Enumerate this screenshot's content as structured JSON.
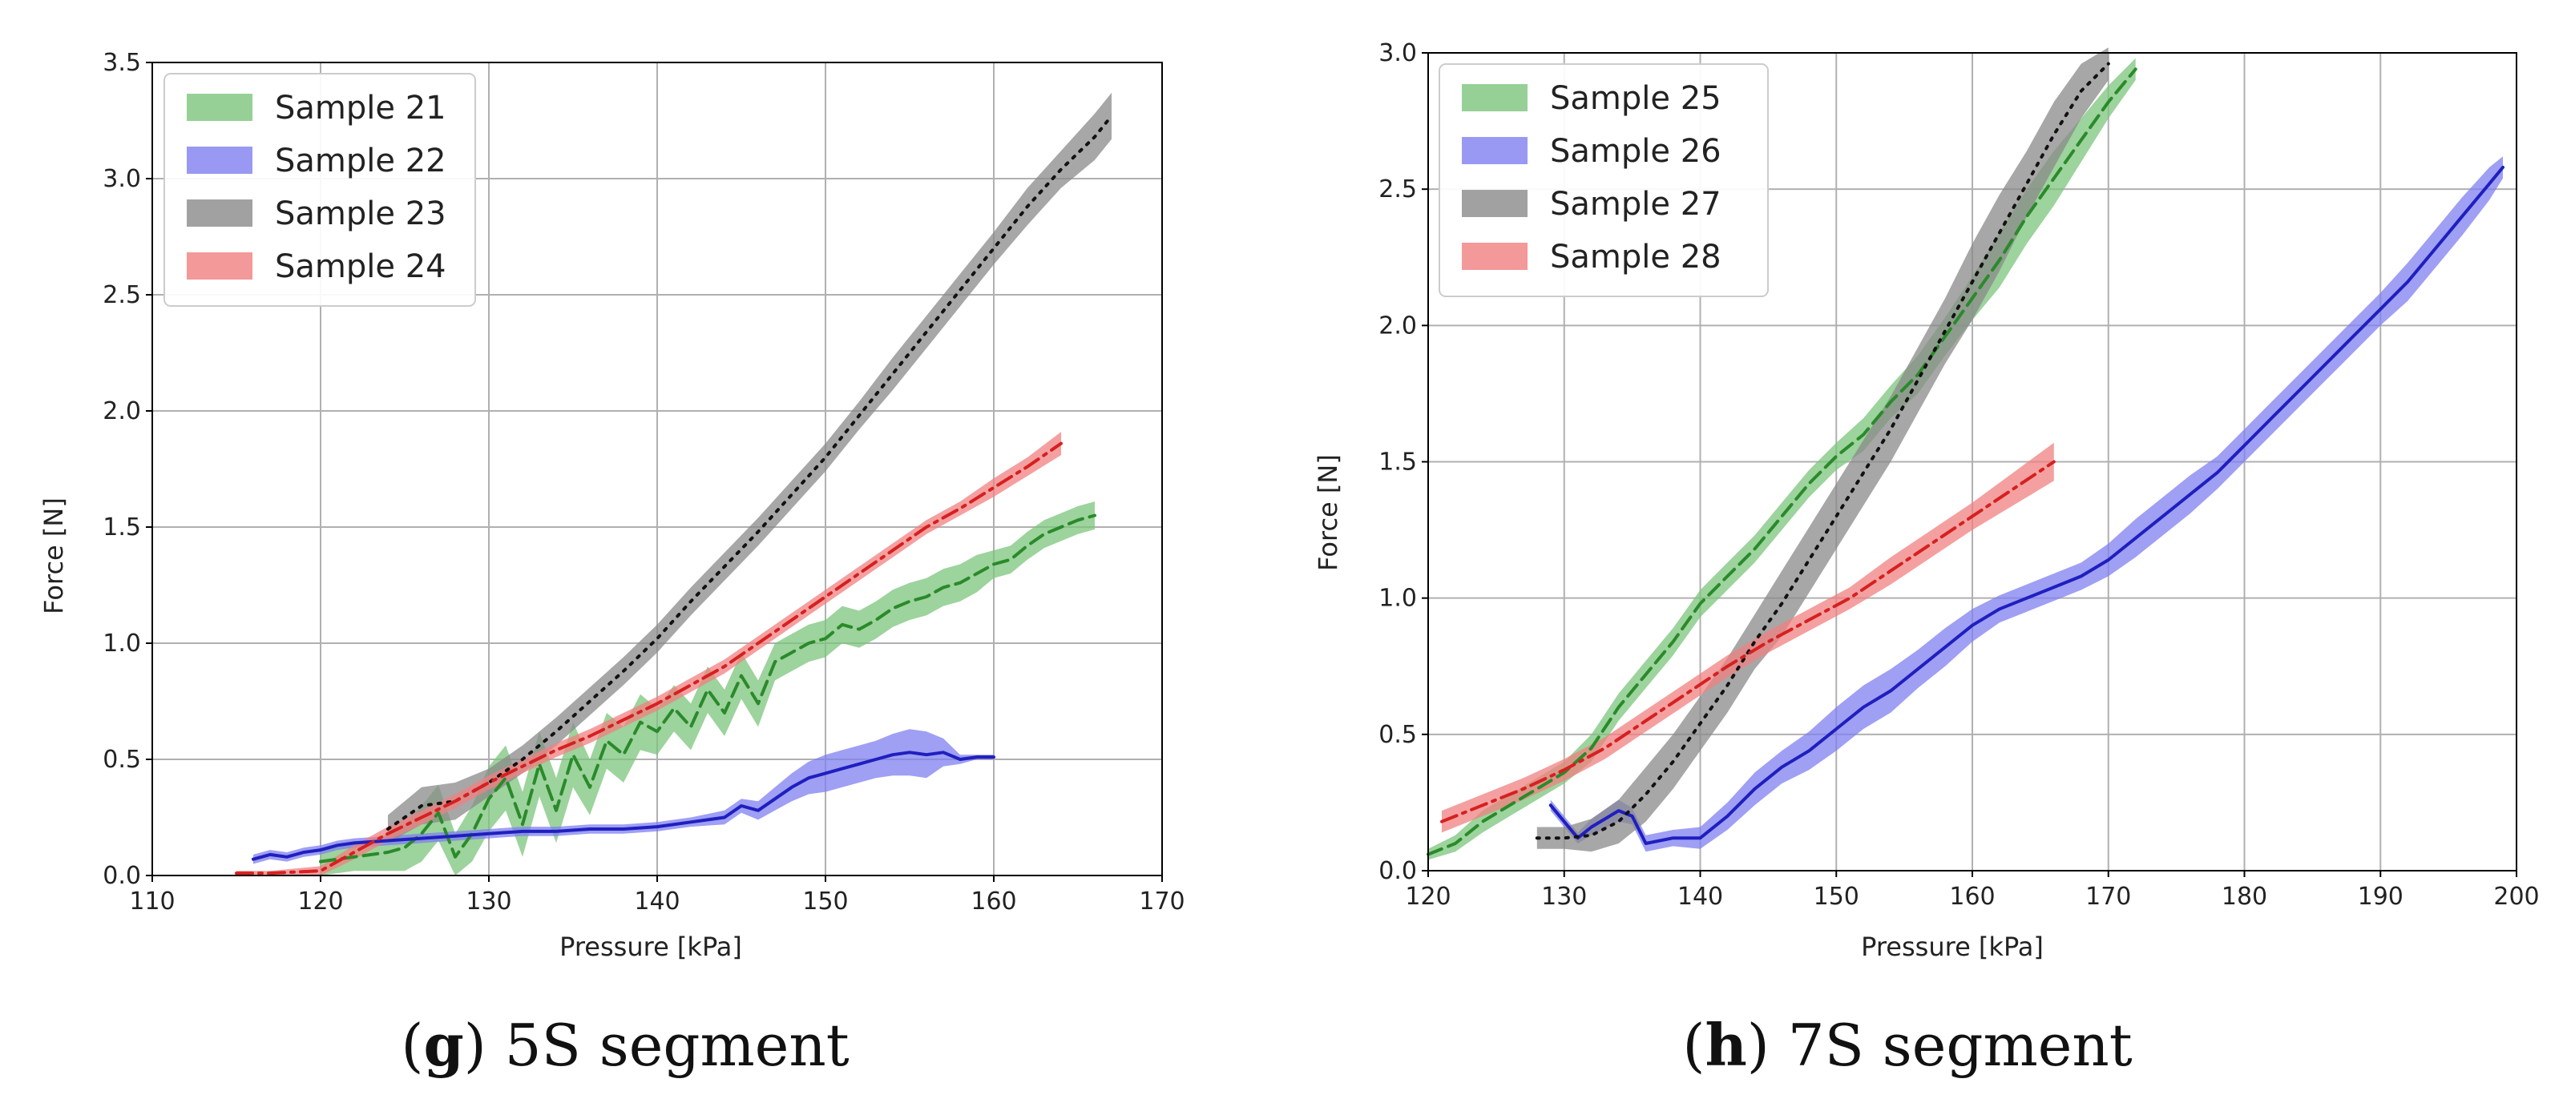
{
  "chart_data": [
    {
      "type": "line",
      "panel": "g",
      "caption_letter": "g",
      "caption_text": "5S segment",
      "xlabel": "Pressure [kPa]",
      "ylabel": "Force [N]",
      "xlim": [
        110,
        170
      ],
      "ylim": [
        0,
        3.5
      ],
      "xticks": [
        110,
        120,
        130,
        140,
        150,
        160,
        170
      ],
      "yticks": [
        0.0,
        0.5,
        1.0,
        1.5,
        2.0,
        2.5,
        3.0,
        3.5
      ],
      "xtick_labels": [
        "110",
        "120",
        "130",
        "140",
        "150",
        "160",
        "170"
      ],
      "ytick_labels": [
        "0.0",
        "0.5",
        "1.0",
        "1.5",
        "2.0",
        "2.5",
        "3.0",
        "3.5"
      ],
      "grid": true,
      "legend_position": "top-left",
      "series": [
        {
          "name": "Sample 21",
          "color": "#2a8a2a",
          "band_color": "#7cc47c",
          "dash": "dashed",
          "x": [
            120,
            122,
            124,
            125,
            126,
            127,
            128,
            129,
            130,
            131,
            132,
            133,
            134,
            135,
            136,
            137,
            138,
            139,
            140,
            141,
            142,
            143,
            144,
            145,
            146,
            147,
            148,
            149,
            150,
            151,
            152,
            153,
            154,
            155,
            156,
            157,
            158,
            159,
            160,
            161,
            162,
            163,
            164,
            165,
            166
          ],
          "y": [
            0.06,
            0.08,
            0.1,
            0.12,
            0.18,
            0.27,
            0.08,
            0.18,
            0.33,
            0.42,
            0.22,
            0.48,
            0.28,
            0.52,
            0.38,
            0.58,
            0.52,
            0.66,
            0.62,
            0.72,
            0.64,
            0.8,
            0.7,
            0.86,
            0.74,
            0.92,
            0.96,
            1.0,
            1.02,
            1.08,
            1.06,
            1.1,
            1.15,
            1.18,
            1.2,
            1.24,
            1.26,
            1.3,
            1.34,
            1.36,
            1.42,
            1.47,
            1.5,
            1.53,
            1.55
          ],
          "band": [
            0.06,
            0.06,
            0.08,
            0.1,
            0.12,
            0.12,
            0.1,
            0.12,
            0.14,
            0.14,
            0.14,
            0.14,
            0.14,
            0.14,
            0.12,
            0.12,
            0.12,
            0.12,
            0.1,
            0.1,
            0.1,
            0.1,
            0.1,
            0.1,
            0.1,
            0.08,
            0.08,
            0.08,
            0.08,
            0.08,
            0.08,
            0.08,
            0.08,
            0.08,
            0.08,
            0.08,
            0.08,
            0.08,
            0.06,
            0.06,
            0.06,
            0.06,
            0.06,
            0.06,
            0.06
          ]
        },
        {
          "name": "Sample 22",
          "color": "#1f1fbf",
          "band_color": "#7f7ff0",
          "dash": "solid",
          "x": [
            116,
            117,
            118,
            119,
            120,
            121,
            122,
            124,
            126,
            128,
            130,
            132,
            134,
            136,
            138,
            140,
            142,
            144,
            145,
            146,
            147,
            148,
            149,
            150,
            151,
            152,
            153,
            154,
            155,
            156,
            157,
            158,
            159,
            160
          ],
          "y": [
            0.07,
            0.09,
            0.08,
            0.1,
            0.11,
            0.13,
            0.14,
            0.15,
            0.16,
            0.17,
            0.18,
            0.19,
            0.19,
            0.2,
            0.2,
            0.21,
            0.23,
            0.25,
            0.3,
            0.28,
            0.33,
            0.38,
            0.42,
            0.44,
            0.46,
            0.48,
            0.5,
            0.52,
            0.53,
            0.52,
            0.53,
            0.5,
            0.51,
            0.51
          ],
          "band": [
            0.02,
            0.02,
            0.02,
            0.02,
            0.02,
            0.02,
            0.02,
            0.02,
            0.02,
            0.02,
            0.02,
            0.02,
            0.02,
            0.02,
            0.02,
            0.02,
            0.02,
            0.03,
            0.03,
            0.04,
            0.05,
            0.06,
            0.07,
            0.08,
            0.08,
            0.08,
            0.08,
            0.09,
            0.1,
            0.1,
            0.06,
            0.02,
            0.01,
            0.01
          ]
        },
        {
          "name": "Sample 23",
          "color": "#111111",
          "band_color": "#8a8a8a",
          "dash": "dotted",
          "x": [
            124,
            126,
            128,
            130,
            132,
            134,
            136,
            138,
            140,
            142,
            144,
            146,
            148,
            150,
            152,
            154,
            156,
            158,
            160,
            162,
            164,
            166,
            167
          ],
          "y": [
            0.2,
            0.3,
            0.32,
            0.4,
            0.5,
            0.62,
            0.75,
            0.88,
            1.02,
            1.18,
            1.33,
            1.48,
            1.64,
            1.8,
            1.98,
            2.16,
            2.34,
            2.52,
            2.7,
            2.88,
            3.04,
            3.18,
            3.27
          ],
          "band": [
            0.06,
            0.08,
            0.08,
            0.06,
            0.06,
            0.06,
            0.06,
            0.06,
            0.06,
            0.06,
            0.06,
            0.06,
            0.06,
            0.06,
            0.06,
            0.07,
            0.07,
            0.07,
            0.07,
            0.08,
            0.08,
            0.1,
            0.1
          ]
        },
        {
          "name": "Sample 24",
          "color": "#d62020",
          "band_color": "#f08080",
          "dash": "dashdot",
          "x": [
            115,
            117,
            120,
            122,
            124,
            126,
            128,
            130,
            132,
            134,
            136,
            138,
            140,
            142,
            144,
            146,
            148,
            150,
            152,
            154,
            156,
            158,
            160,
            162,
            164
          ],
          "y": [
            0.01,
            0.01,
            0.02,
            0.1,
            0.18,
            0.25,
            0.32,
            0.4,
            0.47,
            0.54,
            0.6,
            0.67,
            0.74,
            0.82,
            0.9,
            1.0,
            1.1,
            1.2,
            1.3,
            1.4,
            1.5,
            1.58,
            1.67,
            1.76,
            1.86
          ],
          "band": [
            0.01,
            0.01,
            0.02,
            0.03,
            0.03,
            0.03,
            0.03,
            0.03,
            0.03,
            0.03,
            0.03,
            0.03,
            0.03,
            0.03,
            0.03,
            0.03,
            0.03,
            0.03,
            0.03,
            0.03,
            0.03,
            0.03,
            0.04,
            0.04,
            0.05
          ]
        }
      ]
    },
    {
      "type": "line",
      "panel": "h",
      "caption_letter": "h",
      "caption_text": "7S segment",
      "xlabel": "Pressure [kPa]",
      "ylabel": "Force [N]",
      "xlim": [
        120,
        200
      ],
      "ylim": [
        0,
        3.0
      ],
      "xticks": [
        120,
        130,
        140,
        150,
        160,
        170,
        180,
        190,
        200
      ],
      "yticks": [
        0.0,
        0.5,
        1.0,
        1.5,
        2.0,
        2.5,
        3.0
      ],
      "xtick_labels": [
        "120",
        "130",
        "140",
        "150",
        "160",
        "170",
        "180",
        "190",
        "200"
      ],
      "ytick_labels": [
        "0.0",
        "0.5",
        "1.0",
        "1.5",
        "2.0",
        "2.5",
        "3.0"
      ],
      "grid": true,
      "legend_position": "top-left",
      "series": [
        {
          "name": "Sample 25",
          "color": "#2a8a2a",
          "band_color": "#7cc47c",
          "dash": "dashed",
          "x": [
            120,
            122,
            124,
            126,
            128,
            130,
            132,
            134,
            136,
            138,
            140,
            142,
            144,
            146,
            148,
            150,
            152,
            154,
            156,
            158,
            160,
            162,
            164,
            166,
            168,
            170,
            172
          ],
          "y": [
            0.06,
            0.1,
            0.18,
            0.24,
            0.3,
            0.36,
            0.45,
            0.6,
            0.72,
            0.84,
            0.98,
            1.08,
            1.18,
            1.3,
            1.42,
            1.52,
            1.6,
            1.72,
            1.82,
            1.96,
            2.1,
            2.24,
            2.4,
            2.54,
            2.68,
            2.82,
            2.94
          ],
          "band": [
            0.02,
            0.03,
            0.04,
            0.04,
            0.04,
            0.04,
            0.05,
            0.05,
            0.05,
            0.05,
            0.05,
            0.05,
            0.05,
            0.05,
            0.05,
            0.05,
            0.06,
            0.06,
            0.07,
            0.07,
            0.08,
            0.1,
            0.1,
            0.1,
            0.08,
            0.06,
            0.04
          ]
        },
        {
          "name": "Sample 26",
          "color": "#1f1fbf",
          "band_color": "#7f7ff0",
          "dash": "solid",
          "x": [
            129,
            131,
            132,
            134,
            135,
            136,
            138,
            140,
            142,
            144,
            146,
            148,
            150,
            152,
            154,
            156,
            158,
            160,
            162,
            164,
            166,
            168,
            170,
            172,
            174,
            176,
            178,
            180,
            182,
            184,
            186,
            188,
            190,
            192,
            194,
            196,
            198,
            199
          ],
          "y": [
            0.24,
            0.12,
            0.16,
            0.22,
            0.2,
            0.1,
            0.12,
            0.12,
            0.2,
            0.3,
            0.38,
            0.44,
            0.52,
            0.6,
            0.66,
            0.74,
            0.82,
            0.9,
            0.96,
            1.0,
            1.04,
            1.08,
            1.14,
            1.22,
            1.3,
            1.38,
            1.46,
            1.56,
            1.66,
            1.76,
            1.86,
            1.96,
            2.06,
            2.16,
            2.28,
            2.4,
            2.52,
            2.58
          ],
          "band": [
            0.02,
            0.02,
            0.03,
            0.04,
            0.03,
            0.03,
            0.03,
            0.04,
            0.05,
            0.06,
            0.06,
            0.07,
            0.08,
            0.08,
            0.08,
            0.07,
            0.07,
            0.06,
            0.05,
            0.05,
            0.05,
            0.05,
            0.06,
            0.07,
            0.07,
            0.07,
            0.06,
            0.06,
            0.06,
            0.06,
            0.06,
            0.06,
            0.06,
            0.07,
            0.07,
            0.07,
            0.06,
            0.04
          ]
        },
        {
          "name": "Sample 27",
          "color": "#111111",
          "band_color": "#8a8a8a",
          "dash": "dotted",
          "x": [
            128,
            130,
            132,
            134,
            136,
            138,
            140,
            142,
            144,
            146,
            148,
            150,
            152,
            154,
            156,
            158,
            160,
            162,
            164,
            166,
            168,
            170
          ],
          "y": [
            0.12,
            0.12,
            0.13,
            0.18,
            0.28,
            0.4,
            0.54,
            0.68,
            0.84,
            0.98,
            1.14,
            1.3,
            1.46,
            1.62,
            1.8,
            1.98,
            2.16,
            2.34,
            2.52,
            2.7,
            2.86,
            2.96
          ],
          "band": [
            0.04,
            0.04,
            0.06,
            0.08,
            0.1,
            0.1,
            0.1,
            0.1,
            0.1,
            0.12,
            0.12,
            0.12,
            0.12,
            0.12,
            0.12,
            0.12,
            0.14,
            0.14,
            0.12,
            0.12,
            0.1,
            0.06
          ]
        },
        {
          "name": "Sample 28",
          "color": "#d62020",
          "band_color": "#f08080",
          "dash": "dashdot",
          "x": [
            121,
            124,
            127,
            130,
            133,
            136,
            139,
            142,
            145,
            148,
            151,
            154,
            157,
            160,
            163,
            166
          ],
          "y": [
            0.18,
            0.24,
            0.3,
            0.37,
            0.45,
            0.55,
            0.65,
            0.75,
            0.84,
            0.92,
            1.0,
            1.1,
            1.2,
            1.3,
            1.4,
            1.5
          ],
          "band": [
            0.04,
            0.04,
            0.04,
            0.04,
            0.04,
            0.04,
            0.04,
            0.04,
            0.04,
            0.04,
            0.04,
            0.05,
            0.05,
            0.05,
            0.06,
            0.07
          ]
        }
      ]
    }
  ]
}
